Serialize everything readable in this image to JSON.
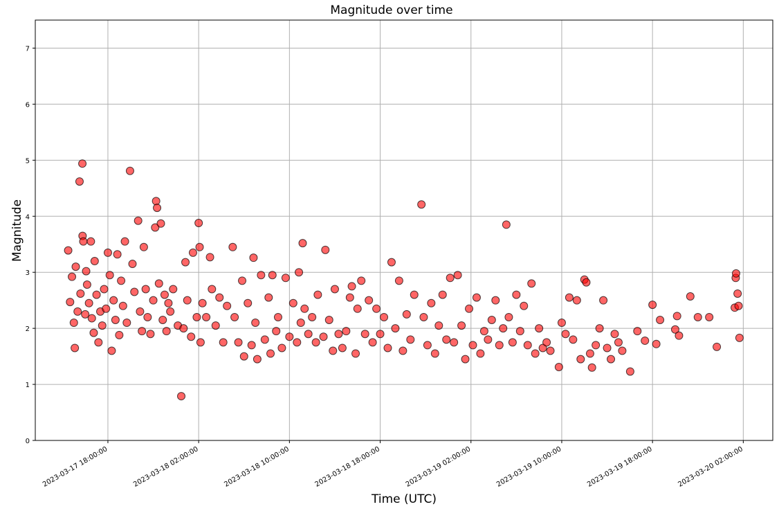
{
  "chart_data": {
    "type": "scatter",
    "title": "Magnitude over time",
    "x_label": "Time (UTC)",
    "y_label": "Magnitude",
    "color": "#ff0000",
    "edgecolor": "#000000",
    "grid": true,
    "xlim": [
      "2023-03-17 11:36:00",
      "2023-03-20 04:36:00"
    ],
    "xticks": [
      "2023-03-17 18:00:00",
      "2023-03-18 02:00:00",
      "2023-03-18 10:00:00",
      "2023-03-18 18:00:00",
      "2023-03-19 02:00:00",
      "2023-03-19 10:00:00",
      "2023-03-19 18:00:00",
      "2023-03-20 02:00:00"
    ],
    "ylim": [
      0,
      7.5
    ],
    "yticks": [
      0,
      1,
      2,
      3,
      4,
      5,
      6,
      7
    ],
    "x": [
      "2023-03-17 14:30:00",
      "2023-03-17 14:40:00",
      "2023-03-17 14:50:00",
      "2023-03-17 15:00:00",
      "2023-03-17 15:05:00",
      "2023-03-17 15:10:00",
      "2023-03-17 15:20:00",
      "2023-03-17 15:30:00",
      "2023-03-17 15:35:00",
      "2023-03-17 15:45:00",
      "2023-03-17 15:46:00",
      "2023-03-17 15:50:00",
      "2023-03-17 16:00:00",
      "2023-03-17 16:05:00",
      "2023-03-17 16:10:00",
      "2023-03-17 16:20:00",
      "2023-03-17 16:30:00",
      "2023-03-17 16:35:00",
      "2023-03-17 16:45:00",
      "2023-03-17 16:50:00",
      "2023-03-17 17:00:00",
      "2023-03-17 17:10:00",
      "2023-03-17 17:20:00",
      "2023-03-17 17:30:00",
      "2023-03-17 17:40:00",
      "2023-03-17 17:50:00",
      "2023-03-17 18:00:00",
      "2023-03-17 18:10:00",
      "2023-03-17 18:20:00",
      "2023-03-17 18:30:00",
      "2023-03-17 18:40:00",
      "2023-03-17 18:50:00",
      "2023-03-17 19:00:00",
      "2023-03-17 19:10:00",
      "2023-03-17 19:20:00",
      "2023-03-17 19:30:00",
      "2023-03-17 19:40:00",
      "2023-03-17 19:57:00",
      "2023-03-17 20:10:00",
      "2023-03-17 20:20:00",
      "2023-03-17 20:40:00",
      "2023-03-17 20:50:00",
      "2023-03-17 21:00:00",
      "2023-03-17 21:10:00",
      "2023-03-17 21:20:00",
      "2023-03-17 21:30:00",
      "2023-03-17 21:45:00",
      "2023-03-17 22:00:00",
      "2023-03-17 22:10:00",
      "2023-03-17 22:15:00",
      "2023-03-17 22:20:00",
      "2023-03-17 22:30:00",
      "2023-03-17 22:40:00",
      "2023-03-17 22:50:00",
      "2023-03-17 23:00:00",
      "2023-03-17 23:10:00",
      "2023-03-17 23:20:00",
      "2023-03-17 23:30:00",
      "2023-03-17 23:45:00",
      "2023-03-18 00:10:00",
      "2023-03-18 00:28:00",
      "2023-03-18 00:40:00",
      "2023-03-18 00:50:00",
      "2023-03-18 01:00:00",
      "2023-03-18 01:20:00",
      "2023-03-18 01:30:00",
      "2023-03-18 01:50:00",
      "2023-03-18 02:00:00",
      "2023-03-18 02:05:00",
      "2023-03-18 02:10:00",
      "2023-03-18 02:20:00",
      "2023-03-18 02:40:00",
      "2023-03-18 03:00:00",
      "2023-03-18 03:10:00",
      "2023-03-18 03:30:00",
      "2023-03-18 03:50:00",
      "2023-03-18 04:10:00",
      "2023-03-18 04:30:00",
      "2023-03-18 05:00:00",
      "2023-03-18 05:10:00",
      "2023-03-18 05:30:00",
      "2023-03-18 05:50:00",
      "2023-03-18 06:00:00",
      "2023-03-18 06:20:00",
      "2023-03-18 06:40:00",
      "2023-03-18 06:50:00",
      "2023-03-18 07:00:00",
      "2023-03-18 07:10:00",
      "2023-03-18 07:30:00",
      "2023-03-18 07:50:00",
      "2023-03-18 08:10:00",
      "2023-03-18 08:20:00",
      "2023-03-18 08:30:00",
      "2023-03-18 08:50:00",
      "2023-03-18 09:00:00",
      "2023-03-18 09:20:00",
      "2023-03-18 09:40:00",
      "2023-03-18 10:00:00",
      "2023-03-18 10:20:00",
      "2023-03-18 10:40:00",
      "2023-03-18 10:50:00",
      "2023-03-18 11:00:00",
      "2023-03-18 11:10:00",
      "2023-03-18 11:20:00",
      "2023-03-18 11:40:00",
      "2023-03-18 12:00:00",
      "2023-03-18 12:20:00",
      "2023-03-18 12:30:00",
      "2023-03-18 13:00:00",
      "2023-03-18 13:10:00",
      "2023-03-18 13:30:00",
      "2023-03-18 13:50:00",
      "2023-03-18 14:00:00",
      "2023-03-18 14:20:00",
      "2023-03-18 14:40:00",
      "2023-03-18 15:00:00",
      "2023-03-18 15:20:00",
      "2023-03-18 15:30:00",
      "2023-03-18 15:50:00",
      "2023-03-18 16:00:00",
      "2023-03-18 16:20:00",
      "2023-03-18 16:40:00",
      "2023-03-18 17:00:00",
      "2023-03-18 17:20:00",
      "2023-03-18 17:40:00",
      "2023-03-18 18:00:00",
      "2023-03-18 18:20:00",
      "2023-03-18 18:40:00",
      "2023-03-18 19:00:00",
      "2023-03-18 19:20:00",
      "2023-03-18 19:40:00",
      "2023-03-18 20:00:00",
      "2023-03-18 20:20:00",
      "2023-03-18 20:40:00",
      "2023-03-18 21:00:00",
      "2023-03-18 21:38:00",
      "2023-03-18 21:50:00",
      "2023-03-18 22:10:00",
      "2023-03-18 22:30:00",
      "2023-03-18 22:50:00",
      "2023-03-18 23:10:00",
      "2023-03-18 23:30:00",
      "2023-03-18 23:50:00",
      "2023-03-19 00:10:00",
      "2023-03-19 00:30:00",
      "2023-03-19 00:50:00",
      "2023-03-19 01:10:00",
      "2023-03-19 01:30:00",
      "2023-03-19 01:50:00",
      "2023-03-19 02:10:00",
      "2023-03-19 02:30:00",
      "2023-03-19 02:50:00",
      "2023-03-19 03:10:00",
      "2023-03-19 03:30:00",
      "2023-03-19 03:50:00",
      "2023-03-19 04:10:00",
      "2023-03-19 04:30:00",
      "2023-03-19 04:50:00",
      "2023-03-19 05:07:00",
      "2023-03-19 05:20:00",
      "2023-03-19 05:40:00",
      "2023-03-19 06:00:00",
      "2023-03-19 06:20:00",
      "2023-03-19 06:40:00",
      "2023-03-19 07:00:00",
      "2023-03-19 07:20:00",
      "2023-03-19 07:40:00",
      "2023-03-19 08:00:00",
      "2023-03-19 08:20:00",
      "2023-03-19 08:40:00",
      "2023-03-19 09:00:00",
      "2023-03-19 09:45:00",
      "2023-03-19 10:00:00",
      "2023-03-19 10:20:00",
      "2023-03-19 10:40:00",
      "2023-03-19 11:00:00",
      "2023-03-19 11:20:00",
      "2023-03-19 11:40:00",
      "2023-03-19 12:00:00",
      "2023-03-19 12:10:00",
      "2023-03-19 12:30:00",
      "2023-03-19 12:40:00",
      "2023-03-19 13:00:00",
      "2023-03-19 13:20:00",
      "2023-03-19 13:40:00",
      "2023-03-19 14:00:00",
      "2023-03-19 14:20:00",
      "2023-03-19 14:40:00",
      "2023-03-19 15:00:00",
      "2023-03-19 15:20:00",
      "2023-03-19 16:02:00",
      "2023-03-19 16:40:00",
      "2023-03-19 17:20:00",
      "2023-03-19 18:00:00",
      "2023-03-19 18:20:00",
      "2023-03-19 18:40:00",
      "2023-03-19 20:00:00",
      "2023-03-19 20:10:00",
      "2023-03-19 20:20:00",
      "2023-03-19 21:20:00",
      "2023-03-19 22:00:00",
      "2023-03-19 23:00:00",
      "2023-03-19 23:40:00",
      "2023-03-20 01:15:00",
      "2023-03-20 01:20:00",
      "2023-03-20 01:22:00",
      "2023-03-20 01:30:00",
      "2023-03-20 01:35:00",
      "2023-03-20 01:40:00"
    ],
    "values": [
      3.39,
      2.47,
      2.92,
      2.1,
      1.65,
      3.1,
      2.3,
      4.62,
      2.62,
      4.94,
      3.65,
      3.55,
      2.25,
      3.02,
      2.78,
      2.45,
      3.55,
      2.18,
      1.92,
      3.2,
      2.6,
      1.75,
      2.3,
      2.05,
      2.7,
      2.35,
      3.35,
      2.95,
      1.6,
      2.5,
      2.15,
      3.32,
      1.88,
      2.85,
      2.4,
      3.55,
      2.1,
      4.81,
      3.15,
      2.65,
      3.92,
      2.3,
      1.95,
      3.45,
      2.7,
      2.2,
      1.9,
      2.5,
      3.8,
      4.27,
      4.15,
      2.8,
      3.87,
      2.15,
      2.6,
      1.95,
      2.45,
      2.3,
      2.7,
      2.05,
      0.79,
      2.0,
      3.18,
      2.5,
      1.85,
      3.35,
      2.2,
      3.88,
      3.45,
      1.75,
      2.45,
      2.2,
      3.27,
      2.7,
      2.05,
      2.55,
      1.75,
      2.4,
      3.45,
      2.2,
      1.75,
      2.85,
      1.5,
      2.45,
      1.7,
      3.26,
      2.1,
      1.45,
      2.95,
      1.8,
      2.55,
      1.55,
      2.95,
      1.95,
      2.2,
      1.65,
      2.9,
      1.85,
      2.45,
      1.75,
      3.0,
      2.1,
      3.52,
      2.35,
      1.9,
      2.2,
      1.75,
      2.6,
      1.85,
      3.4,
      2.15,
      1.6,
      2.7,
      1.9,
      1.65,
      1.95,
      2.55,
      2.75,
      1.55,
      2.35,
      2.85,
      1.9,
      2.5,
      1.75,
      2.35,
      1.9,
      2.2,
      1.65,
      3.18,
      2.0,
      2.85,
      1.6,
      2.25,
      1.8,
      2.6,
      4.21,
      2.2,
      1.7,
      2.45,
      1.55,
      2.05,
      2.6,
      1.8,
      2.9,
      1.75,
      2.95,
      2.05,
      1.45,
      2.35,
      1.7,
      2.55,
      1.55,
      1.95,
      1.8,
      2.15,
      2.5,
      1.7,
      2.0,
      3.85,
      2.2,
      1.75,
      2.6,
      1.95,
      2.4,
      1.7,
      2.8,
      1.55,
      2.0,
      1.65,
      1.75,
      1.6,
      1.31,
      2.1,
      1.9,
      2.55,
      1.8,
      2.5,
      1.45,
      2.87,
      2.82,
      1.55,
      1.3,
      1.7,
      2.0,
      2.5,
      1.65,
      1.45,
      1.9,
      1.75,
      1.6,
      1.23,
      1.95,
      1.78,
      2.42,
      1.72,
      2.15,
      1.98,
      2.22,
      1.87,
      2.57,
      2.2,
      2.2,
      1.67,
      2.37,
      2.9,
      2.98,
      2.62,
      2.4,
      1.83
    ]
  }
}
